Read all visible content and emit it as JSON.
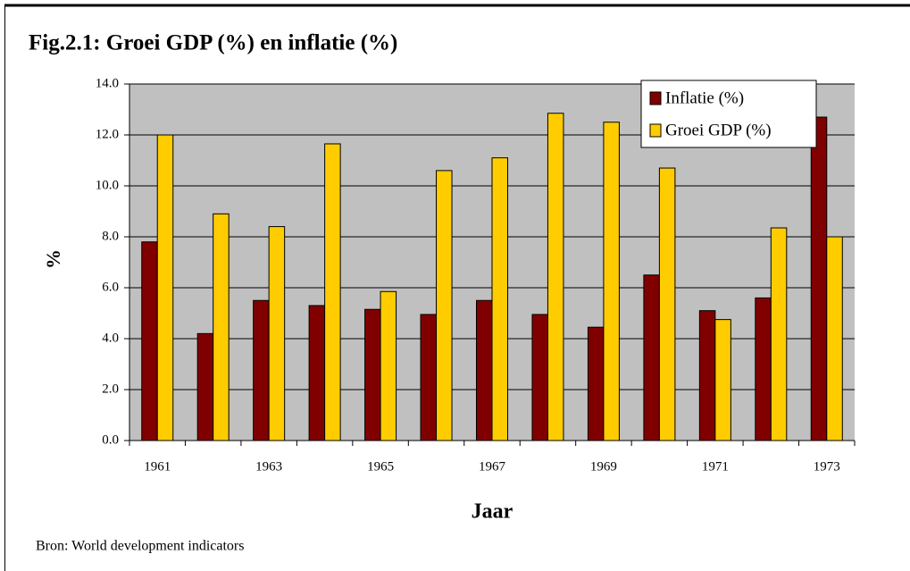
{
  "chart_data": {
    "type": "bar",
    "title": "Fig.2.1: Groei GDP (%) en inflatie (%)",
    "x_label": "Jaar",
    "y_label": "%",
    "source": "Bron: World development indicators",
    "categories": [
      1961,
      null,
      1963,
      null,
      1965,
      null,
      1967,
      null,
      1969,
      null,
      1971,
      null,
      1973
    ],
    "series": [
      {
        "name": "Inflatie (%)",
        "color": "#800000",
        "values": [
          7.8,
          4.2,
          5.5,
          5.3,
          5.15,
          4.95,
          5.5,
          4.95,
          4.45,
          6.5,
          5.1,
          5.6,
          12.7
        ]
      },
      {
        "name": "Groei GDP (%)",
        "color": "#ffcc00",
        "values": [
          12.0,
          8.9,
          8.4,
          11.65,
          5.85,
          10.6,
          11.1,
          12.85,
          12.5,
          10.7,
          4.75,
          8.35,
          8.0
        ]
      }
    ],
    "ylim": [
      0,
      14
    ],
    "yticks": [
      {
        "value": 0,
        "label": "0.0"
      },
      {
        "value": 2,
        "label": "2.0"
      },
      {
        "value": 4,
        "label": "4.0"
      },
      {
        "value": 6,
        "label": "6.0"
      },
      {
        "value": 8,
        "label": "8.0"
      },
      {
        "value": 10,
        "label": "10.0"
      },
      {
        "value": 12,
        "label": "12.0"
      },
      {
        "value": 14,
        "label": "14.0"
      }
    ],
    "grid": true,
    "legend": "top-right"
  }
}
